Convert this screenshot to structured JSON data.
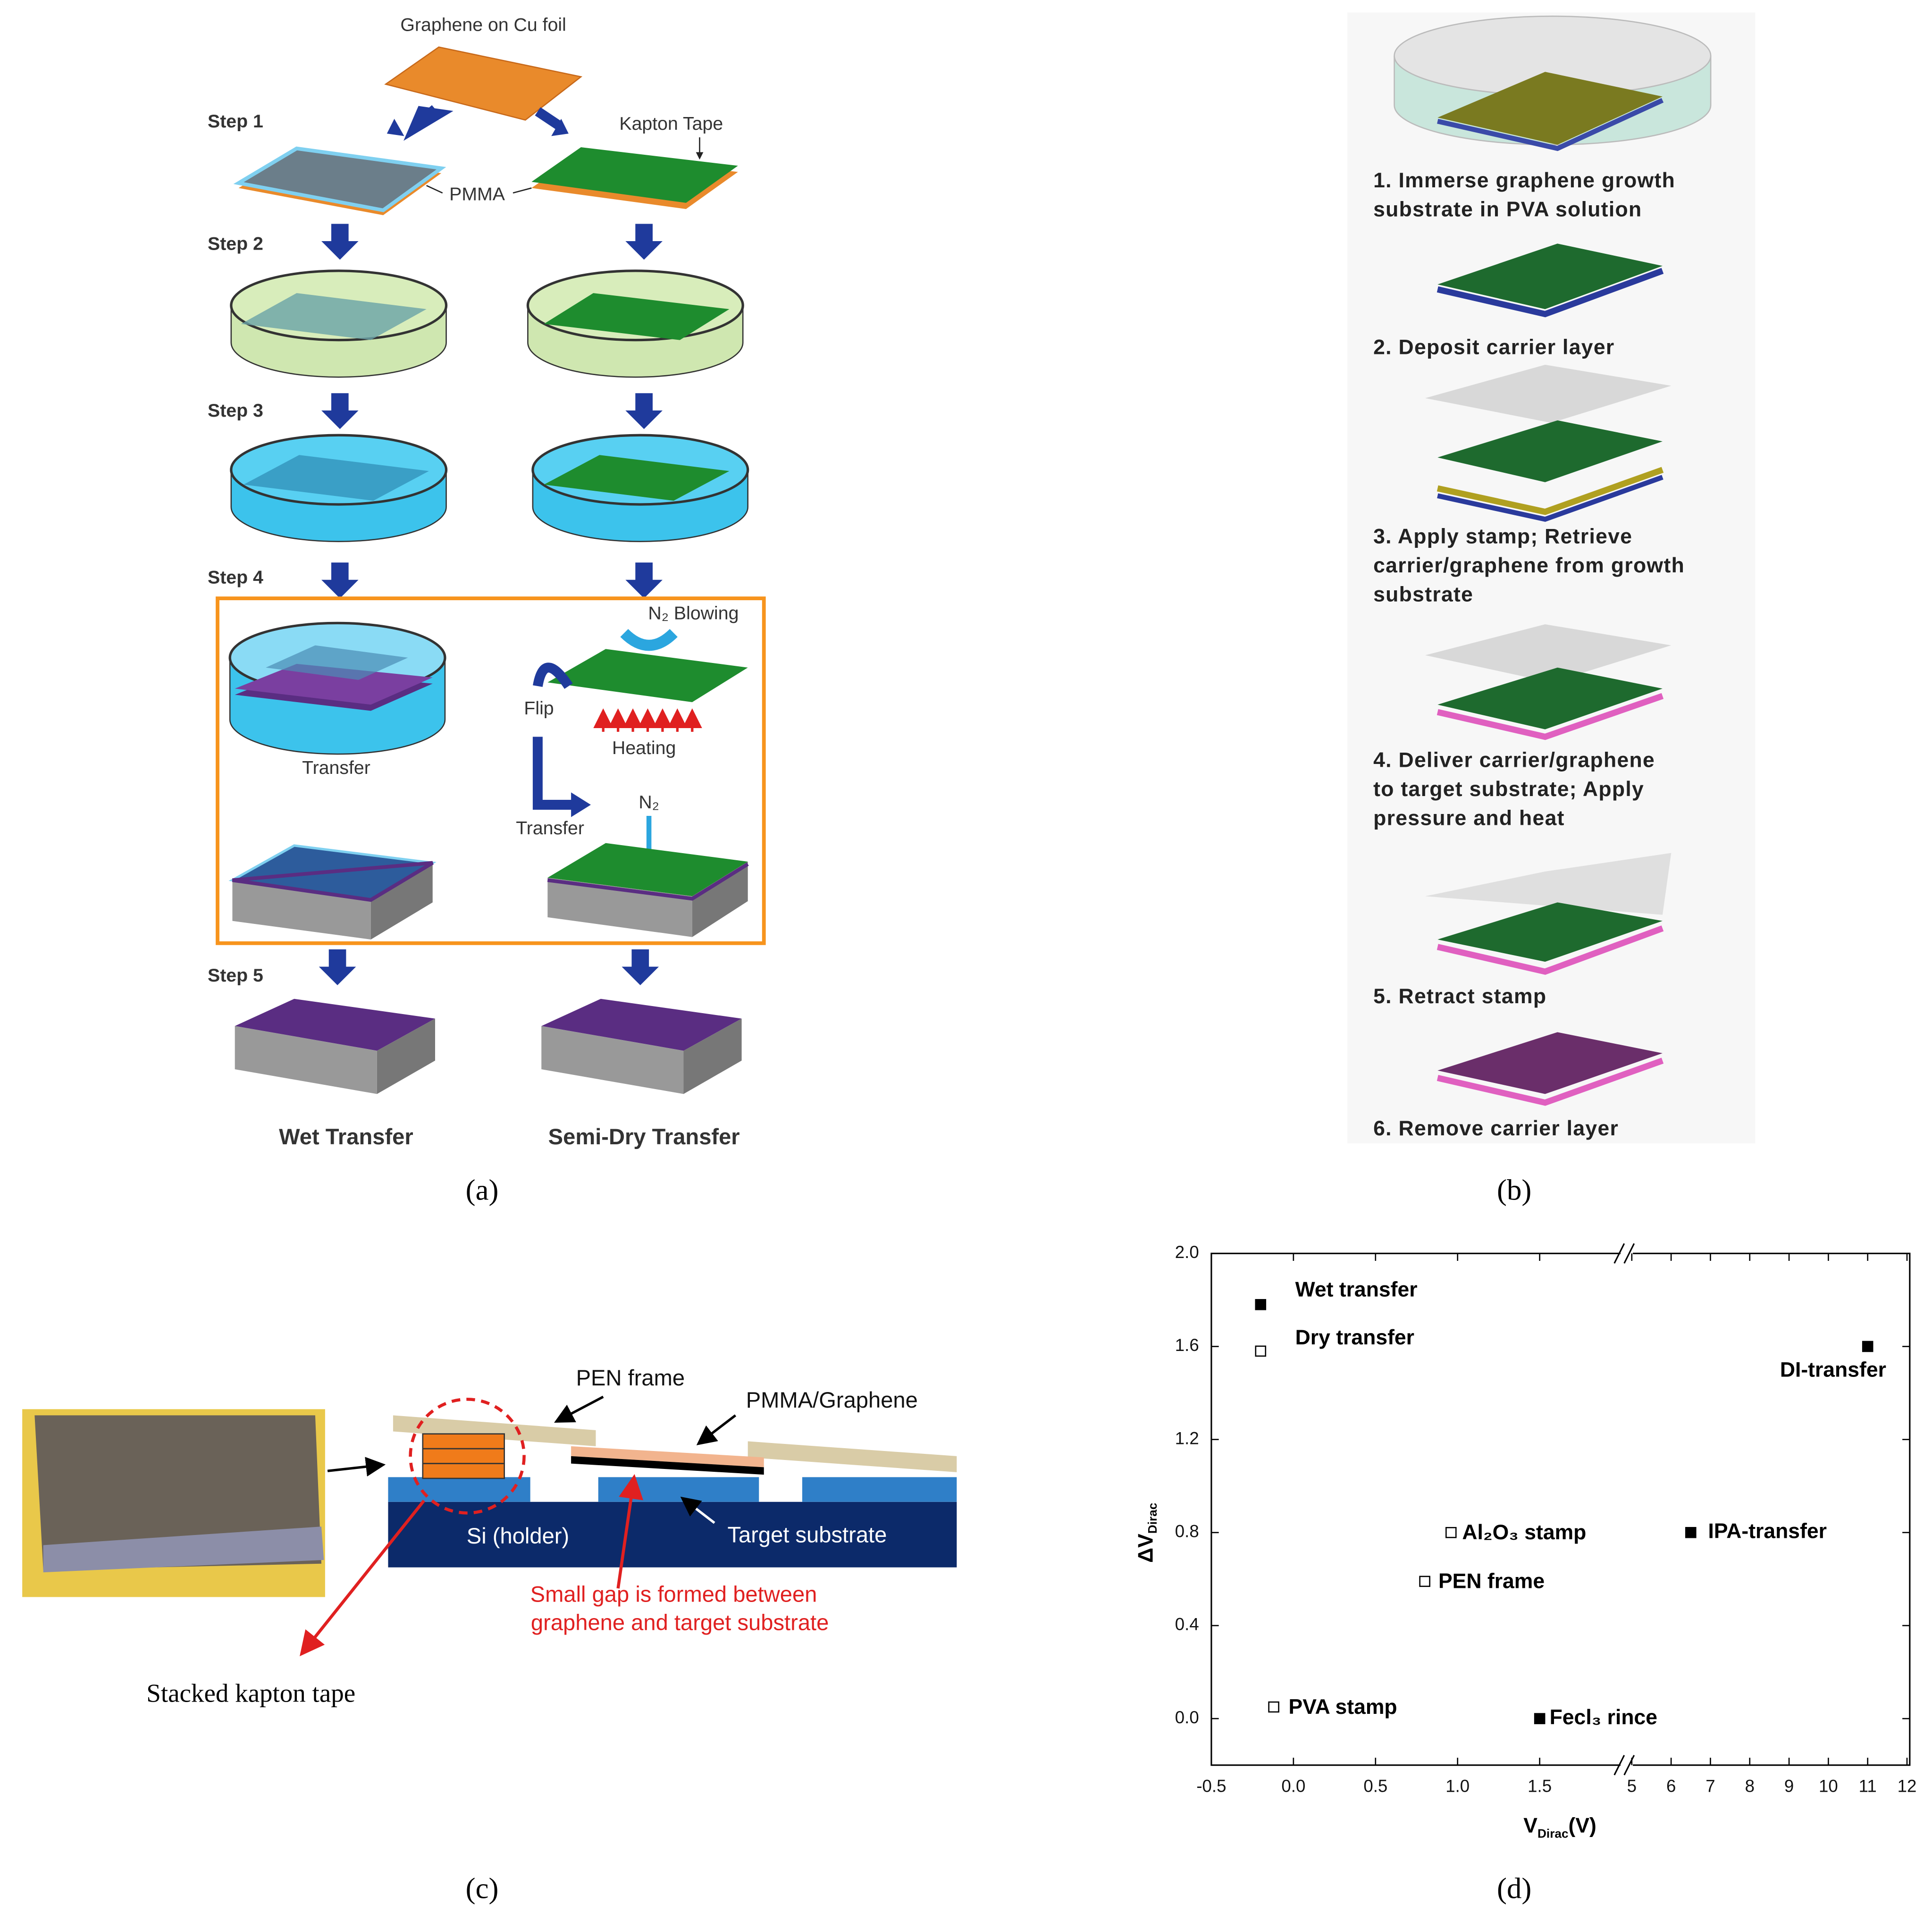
{
  "panel_a": {
    "source": "Graphene on Cu foil",
    "steps": [
      "Step 1",
      "Step 2",
      "Step 3",
      "Step 4",
      "Step 5"
    ],
    "kapton_tape": "Kapton Tape",
    "pmma": "PMMA",
    "n2_blowing": "N₂ Blowing",
    "flip": "Flip",
    "heating": "Heating",
    "transfer_labels": [
      "Transfer",
      "Transfer"
    ],
    "n2": "N₂",
    "columns": [
      "Wet Transfer",
      "Semi-Dry Transfer"
    ],
    "caption": "(a)"
  },
  "panel_b": {
    "steps": [
      [
        "1. Immerse graphene growth",
        "substrate in PVA solution"
      ],
      [
        "2. Deposit carrier layer"
      ],
      [
        "3. Apply stamp; Retrieve",
        "carrier/graphene from growth",
        "substrate"
      ],
      [
        "4. Deliver carrier/graphene",
        "to target substrate; Apply",
        "pressure and heat"
      ],
      [
        "5. Retract stamp"
      ],
      [
        "6. Remove carrier layer"
      ]
    ],
    "caption": "(b)"
  },
  "panel_c": {
    "pen_frame": "PEN frame",
    "pmma_graphene": "PMMA/Graphene",
    "si_holder": "Si (holder)",
    "target_substrate": "Target substrate",
    "gap_note": [
      "Small gap is formed between",
      "graphene and target substrate"
    ],
    "stacked_kapton": "Stacked kapton tape",
    "caption": "(c)"
  },
  "panel_d": {
    "caption": "(d)"
  },
  "chart_data": {
    "type": "scatter",
    "y_label": "ΔV",
    "y_label_subscript": "Dirac",
    "x_label": "V",
    "x_label_subscript": "Dirac",
    "x_label_unit": "(V)",
    "ylim": [
      -0.2,
      2.0
    ],
    "yticks": [
      {
        "value": 0,
        "label": "0.0"
      },
      0.4,
      0.8,
      1.2,
      1.6,
      {
        "value": 2,
        "label": "2.0"
      }
    ],
    "x_segments": [
      {
        "xlim": [
          -0.5,
          2.03
        ],
        "xticks": [
          -0.5,
          {
            "value": 0,
            "label": "0.0"
          },
          0.5,
          {
            "value": 1,
            "label": "1.0"
          },
          1.5
        ]
      },
      {
        "xlim": [
          4.87,
          12.07
        ],
        "xticks": [
          5,
          6,
          7,
          8,
          9,
          10,
          11,
          12
        ]
      }
    ],
    "color": "#000000",
    "points": [
      {
        "label": "Wet transfer",
        "x": -0.2,
        "y": 1.78,
        "marker": "filled"
      },
      {
        "label": "Dry transfer",
        "x": -0.2,
        "y": 1.58,
        "marker": "open"
      },
      {
        "label": "DI-transfer",
        "x": 11,
        "y": 1.6,
        "marker": "filled"
      },
      {
        "label": "Al₂O₃ stamp",
        "x": 0.96,
        "y": 0.8,
        "marker": "open"
      },
      {
        "label": "IPA-transfer",
        "x": 6.5,
        "y": 0.8,
        "marker": "filled"
      },
      {
        "label": "PEN frame",
        "x": 0.8,
        "y": 0.59,
        "marker": "open"
      },
      {
        "label": "PVA stamp",
        "x": -0.12,
        "y": 0.05,
        "marker": "open"
      },
      {
        "label": "Fecl₃ rince",
        "x": 1.5,
        "y": 0,
        "marker": "filled"
      }
    ]
  }
}
